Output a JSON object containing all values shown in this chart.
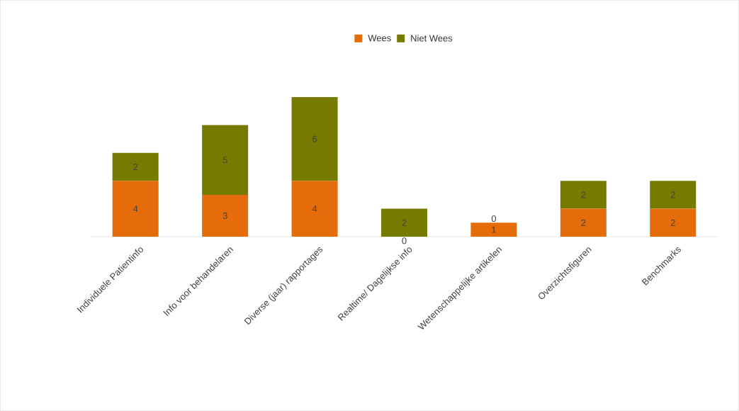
{
  "chart_data": {
    "type": "bar",
    "stacked": true,
    "data_labels": true,
    "legend": "top",
    "categories": [
      "Individuele Patientinfo",
      "Info voor behandelaren",
      "Diverse (jaar) rapportages",
      "Realtime/ Dagelijkse info",
      "Wetenschappelijke artikelen",
      "Overzichtsfiguren",
      "Benchmarks"
    ],
    "series": [
      {
        "name": "Wees",
        "color": "#e46c0a",
        "values": [
          4,
          3,
          4,
          0,
          1,
          2,
          2
        ]
      },
      {
        "name": "Niet Wees",
        "color": "#767b00",
        "values": [
          2,
          5,
          6,
          2,
          0,
          2,
          2
        ]
      }
    ]
  }
}
